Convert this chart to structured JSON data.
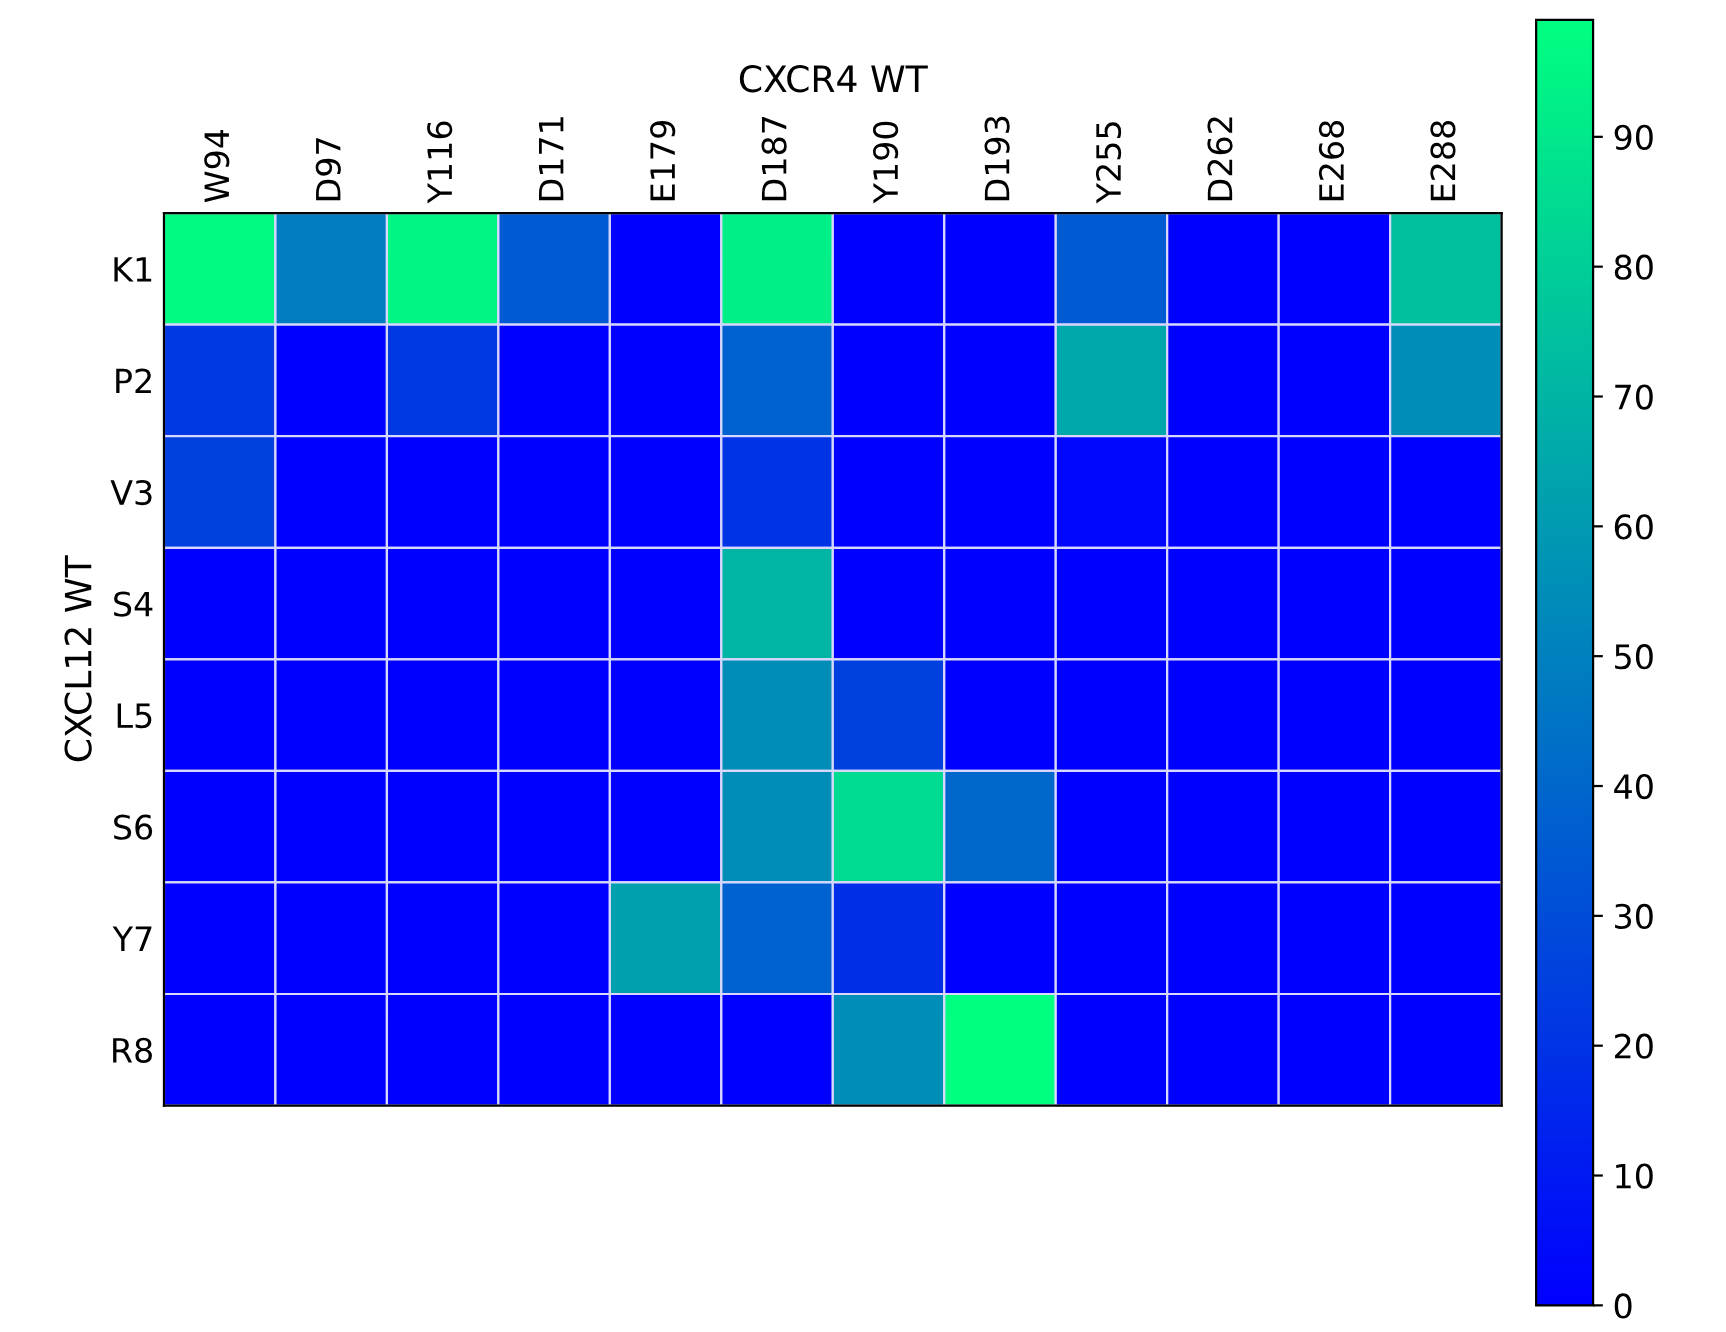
{
  "chart_data": {
    "type": "heatmap",
    "xlabel": "CXCR4 WT",
    "ylabel": "CXCL12 WT",
    "categories": [
      "W94",
      "D97",
      "Y116",
      "D171",
      "E179",
      "D187",
      "Y190",
      "D193",
      "Y255",
      "D262",
      "E268",
      "E288"
    ],
    "y_categories": [
      "K1",
      "P2",
      "V3",
      "S4",
      "L5",
      "S6",
      "Y7",
      "R8"
    ],
    "cells": [
      [
        97,
        48,
        95,
        35,
        0,
        93,
        0,
        0,
        35,
        0,
        0,
        75
      ],
      [
        22,
        0,
        22,
        0,
        0,
        38,
        0,
        0,
        65,
        0,
        0,
        55
      ],
      [
        25,
        0,
        0,
        0,
        0,
        20,
        0,
        0,
        3,
        0,
        0,
        0
      ],
      [
        0,
        0,
        0,
        0,
        0,
        70,
        0,
        0,
        0,
        0,
        0,
        0
      ],
      [
        0,
        0,
        0,
        0,
        0,
        55,
        25,
        0,
        0,
        0,
        0,
        0
      ],
      [
        0,
        0,
        0,
        0,
        0,
        55,
        85,
        40,
        0,
        0,
        0,
        0
      ],
      [
        0,
        0,
        0,
        0,
        62,
        38,
        18,
        0,
        0,
        0,
        0,
        0
      ],
      [
        0,
        0,
        0,
        0,
        0,
        0,
        55,
        99,
        0,
        0,
        0,
        0
      ]
    ],
    "clim": [
      0,
      99
    ],
    "cticks": [
      0,
      10,
      20,
      30,
      40,
      50,
      60,
      70,
      80,
      90
    ]
  }
}
